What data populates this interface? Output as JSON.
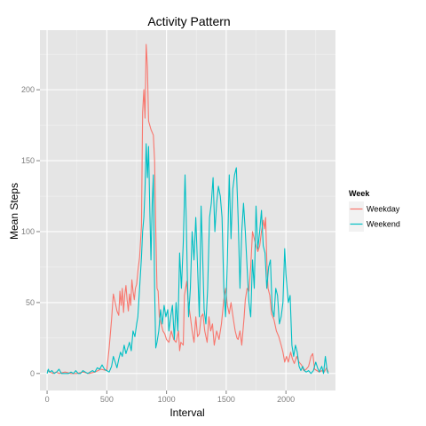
{
  "chart_data": {
    "type": "line",
    "title": "Activity Pattern",
    "xlabel": "Interval",
    "ylabel": "Mean Steps",
    "xlim": [
      -60,
      2415
    ],
    "ylim": [
      -12,
      242
    ],
    "x_ticks": [
      0,
      500,
      1000,
      1500,
      2000
    ],
    "y_ticks": [
      0,
      50,
      100,
      150,
      200
    ],
    "grid": true,
    "legend": {
      "title": "Week",
      "placement": "right"
    },
    "series": [
      {
        "name": "Weekday",
        "color": "#F8766D",
        "points": [
          [
            0,
            2
          ],
          [
            25,
            1
          ],
          [
            50,
            0
          ],
          [
            75,
            1
          ],
          [
            100,
            0
          ],
          [
            150,
            1
          ],
          [
            200,
            0
          ],
          [
            250,
            0
          ],
          [
            300,
            1
          ],
          [
            350,
            0
          ],
          [
            400,
            1
          ],
          [
            450,
            3
          ],
          [
            500,
            2
          ],
          [
            520,
            18
          ],
          [
            540,
            38
          ],
          [
            555,
            56
          ],
          [
            570,
            50
          ],
          [
            585,
            44
          ],
          [
            600,
            41
          ],
          [
            610,
            58
          ],
          [
            620,
            48
          ],
          [
            630,
            60
          ],
          [
            640,
            43
          ],
          [
            650,
            55
          ],
          [
            660,
            62
          ],
          [
            670,
            52
          ],
          [
            680,
            44
          ],
          [
            690,
            56
          ],
          [
            700,
            48
          ],
          [
            710,
            66
          ],
          [
            720,
            58
          ],
          [
            730,
            52
          ],
          [
            740,
            60
          ],
          [
            750,
            63
          ],
          [
            760,
            72
          ],
          [
            775,
            82
          ],
          [
            790,
            104
          ],
          [
            800,
            184
          ],
          [
            810,
            200
          ],
          [
            820,
            180
          ],
          [
            830,
            232
          ],
          [
            840,
            216
          ],
          [
            850,
            178
          ],
          [
            870,
            172
          ],
          [
            890,
            168
          ],
          [
            900,
            150
          ],
          [
            910,
            102
          ],
          [
            920,
            60
          ],
          [
            930,
            58
          ],
          [
            940,
            40
          ],
          [
            955,
            35
          ],
          [
            970,
            30
          ],
          [
            985,
            28
          ],
          [
            1000,
            24
          ],
          [
            1020,
            22
          ],
          [
            1040,
            30
          ],
          [
            1060,
            24
          ],
          [
            1080,
            22
          ],
          [
            1100,
            30
          ],
          [
            1110,
            16
          ],
          [
            1120,
            22
          ],
          [
            1140,
            20
          ],
          [
            1150,
            55
          ],
          [
            1160,
            60
          ],
          [
            1170,
            65
          ],
          [
            1180,
            52
          ],
          [
            1200,
            40
          ],
          [
            1215,
            30
          ],
          [
            1230,
            22
          ],
          [
            1245,
            40
          ],
          [
            1260,
            26
          ],
          [
            1275,
            28
          ],
          [
            1290,
            40
          ],
          [
            1305,
            42
          ],
          [
            1320,
            30
          ],
          [
            1340,
            22
          ],
          [
            1355,
            40
          ],
          [
            1370,
            30
          ],
          [
            1385,
            35
          ],
          [
            1400,
            20
          ],
          [
            1420,
            30
          ],
          [
            1440,
            24
          ],
          [
            1460,
            35
          ],
          [
            1480,
            52
          ],
          [
            1495,
            60
          ],
          [
            1510,
            48
          ],
          [
            1525,
            42
          ],
          [
            1540,
            50
          ],
          [
            1560,
            38
          ],
          [
            1575,
            30
          ],
          [
            1590,
            25
          ],
          [
            1600,
            24
          ],
          [
            1615,
            30
          ],
          [
            1630,
            20
          ],
          [
            1650,
            40
          ],
          [
            1660,
            52
          ],
          [
            1675,
            60
          ],
          [
            1690,
            58
          ],
          [
            1705,
            75
          ],
          [
            1720,
            100
          ],
          [
            1735,
            95
          ],
          [
            1750,
            90
          ],
          [
            1765,
            86
          ],
          [
            1780,
            90
          ],
          [
            1795,
            100
          ],
          [
            1810,
            108
          ],
          [
            1820,
            102
          ],
          [
            1830,
            110
          ],
          [
            1840,
            80
          ],
          [
            1850,
            60
          ],
          [
            1865,
            55
          ],
          [
            1880,
            42
          ],
          [
            1900,
            38
          ],
          [
            1920,
            30
          ],
          [
            1940,
            26
          ],
          [
            1960,
            20
          ],
          [
            1975,
            15
          ],
          [
            1990,
            8
          ],
          [
            2005,
            12
          ],
          [
            2020,
            8
          ],
          [
            2040,
            15
          ],
          [
            2055,
            10
          ],
          [
            2070,
            7
          ],
          [
            2090,
            12
          ],
          [
            2110,
            8
          ],
          [
            2130,
            6
          ],
          [
            2150,
            2
          ],
          [
            2170,
            3
          ],
          [
            2190,
            5
          ],
          [
            2210,
            12
          ],
          [
            2225,
            14
          ],
          [
            2240,
            3
          ],
          [
            2260,
            2
          ],
          [
            2280,
            1
          ],
          [
            2300,
            2
          ],
          [
            2320,
            1
          ],
          [
            2340,
            4
          ],
          [
            2355,
            1
          ]
        ]
      },
      {
        "name": "Weekend",
        "color": "#00BFC4",
        "points": [
          [
            0,
            0
          ],
          [
            10,
            3
          ],
          [
            20,
            1
          ],
          [
            40,
            2
          ],
          [
            60,
            0
          ],
          [
            80,
            1
          ],
          [
            100,
            3
          ],
          [
            120,
            0
          ],
          [
            140,
            0
          ],
          [
            180,
            0
          ],
          [
            200,
            1
          ],
          [
            220,
            0
          ],
          [
            240,
            2
          ],
          [
            260,
            0
          ],
          [
            280,
            0
          ],
          [
            300,
            2
          ],
          [
            320,
            1
          ],
          [
            340,
            0
          ],
          [
            360,
            1
          ],
          [
            380,
            2
          ],
          [
            400,
            1
          ],
          [
            420,
            4
          ],
          [
            440,
            3
          ],
          [
            460,
            6
          ],
          [
            480,
            3
          ],
          [
            500,
            2
          ],
          [
            520,
            1
          ],
          [
            540,
            5
          ],
          [
            555,
            12
          ],
          [
            570,
            8
          ],
          [
            585,
            4
          ],
          [
            600,
            10
          ],
          [
            615,
            15
          ],
          [
            630,
            12
          ],
          [
            645,
            20
          ],
          [
            660,
            14
          ],
          [
            675,
            18
          ],
          [
            690,
            22
          ],
          [
            705,
            16
          ],
          [
            720,
            30
          ],
          [
            735,
            26
          ],
          [
            750,
            35
          ],
          [
            760,
            40
          ],
          [
            775,
            60
          ],
          [
            790,
            82
          ],
          [
            800,
            100
          ],
          [
            810,
            110
          ],
          [
            820,
            130
          ],
          [
            830,
            162
          ],
          [
            840,
            138
          ],
          [
            850,
            160
          ],
          [
            860,
            115
          ],
          [
            870,
            80
          ],
          [
            880,
            120
          ],
          [
            890,
            140
          ],
          [
            900,
            60
          ],
          [
            910,
            18
          ],
          [
            920,
            22
          ],
          [
            935,
            30
          ],
          [
            950,
            45
          ],
          [
            965,
            35
          ],
          [
            980,
            48
          ],
          [
            995,
            40
          ],
          [
            1010,
            45
          ],
          [
            1020,
            30
          ],
          [
            1035,
            40
          ],
          [
            1050,
            48
          ],
          [
            1065,
            24
          ],
          [
            1080,
            50
          ],
          [
            1095,
            30
          ],
          [
            1110,
            85
          ],
          [
            1125,
            60
          ],
          [
            1140,
            92
          ],
          [
            1155,
            140
          ],
          [
            1165,
            110
          ],
          [
            1175,
            65
          ],
          [
            1185,
            40
          ],
          [
            1200,
            60
          ],
          [
            1215,
            100
          ],
          [
            1230,
            80
          ],
          [
            1245,
            110
          ],
          [
            1260,
            75
          ],
          [
            1275,
            40
          ],
          [
            1290,
            118
          ],
          [
            1300,
            90
          ],
          [
            1315,
            45
          ],
          [
            1330,
            35
          ],
          [
            1345,
            60
          ],
          [
            1360,
            110
          ],
          [
            1375,
            120
          ],
          [
            1390,
            138
          ],
          [
            1405,
            100
          ],
          [
            1420,
            120
          ],
          [
            1435,
            132
          ],
          [
            1450,
            125
          ],
          [
            1465,
            110
          ],
          [
            1480,
            60
          ],
          [
            1495,
            40
          ],
          [
            1510,
            80
          ],
          [
            1525,
            140
          ],
          [
            1540,
            95
          ],
          [
            1555,
            130
          ],
          [
            1570,
            140
          ],
          [
            1585,
            145
          ],
          [
            1600,
            110
          ],
          [
            1615,
            60
          ],
          [
            1630,
            100
          ],
          [
            1645,
            120
          ],
          [
            1660,
            100
          ],
          [
            1675,
            75
          ],
          [
            1690,
            50
          ],
          [
            1705,
            40
          ],
          [
            1720,
            80
          ],
          [
            1735,
            60
          ],
          [
            1750,
            118
          ],
          [
            1765,
            88
          ],
          [
            1780,
            100
          ],
          [
            1795,
            115
          ],
          [
            1810,
            90
          ],
          [
            1825,
            85
          ],
          [
            1840,
            60
          ],
          [
            1855,
            75
          ],
          [
            1870,
            80
          ],
          [
            1885,
            45
          ],
          [
            1900,
            40
          ],
          [
            1915,
            60
          ],
          [
            1930,
            55
          ],
          [
            1945,
            35
          ],
          [
            1960,
            40
          ],
          [
            1975,
            50
          ],
          [
            1990,
            88
          ],
          [
            2000,
            70
          ],
          [
            2010,
            60
          ],
          [
            2020,
            50
          ],
          [
            2035,
            55
          ],
          [
            2050,
            20
          ],
          [
            2065,
            12
          ],
          [
            2080,
            20
          ],
          [
            2095,
            15
          ],
          [
            2110,
            5
          ],
          [
            2125,
            2
          ],
          [
            2140,
            5
          ],
          [
            2155,
            2
          ],
          [
            2170,
            1
          ],
          [
            2190,
            2
          ],
          [
            2210,
            0
          ],
          [
            2230,
            2
          ],
          [
            2250,
            8
          ],
          [
            2265,
            4
          ],
          [
            2280,
            1
          ],
          [
            2300,
            5
          ],
          [
            2315,
            0
          ],
          [
            2330,
            12
          ],
          [
            2345,
            2
          ],
          [
            2355,
            0
          ]
        ]
      }
    ]
  }
}
